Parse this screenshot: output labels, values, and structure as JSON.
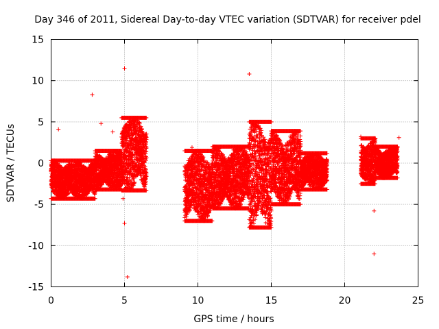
{
  "chart_data": {
    "type": "scatter",
    "title": "Day 346 of 2011, Sidereal Day-to-day VTEC variation (SDTVAR) for receiver pdel",
    "xlabel": "GPS time / hours",
    "ylabel": "SDTVAR / TECUs",
    "xlim": [
      0,
      25
    ],
    "ylim": [
      -15,
      15
    ],
    "xticks": [
      0,
      5,
      10,
      15,
      20,
      25
    ],
    "yticks": [
      -15,
      -10,
      -5,
      0,
      5,
      10,
      15
    ],
    "grid": true,
    "marker": "+",
    "color": "#ff0000",
    "segments": [
      {
        "x_start": 0.0,
        "x_end": 3.0,
        "y_low": -4.3,
        "y_high": 0.3
      },
      {
        "x_start": 3.0,
        "x_end": 4.8,
        "y_low": -3.2,
        "y_high": 1.5
      },
      {
        "x_start": 4.8,
        "x_end": 6.5,
        "y_low": -3.3,
        "y_high": 5.5
      },
      {
        "x_start": 9.1,
        "x_end": 11.0,
        "y_low": -7.0,
        "y_high": 1.5
      },
      {
        "x_start": 11.0,
        "x_end": 13.5,
        "y_low": -5.5,
        "y_high": 2.0
      },
      {
        "x_start": 13.5,
        "x_end": 15.0,
        "y_low": -7.8,
        "y_high": 5.0
      },
      {
        "x_start": 15.0,
        "x_end": 17.0,
        "y_low": -5.0,
        "y_high": 3.9
      },
      {
        "x_start": 17.0,
        "x_end": 18.8,
        "y_low": -3.2,
        "y_high": 1.2
      },
      {
        "x_start": 21.1,
        "x_end": 22.1,
        "y_low": -2.5,
        "y_high": 3.0
      },
      {
        "x_start": 22.1,
        "x_end": 23.6,
        "y_low": -1.8,
        "y_high": 2.0
      }
    ],
    "outliers": [
      {
        "x": 0.5,
        "y": 4.1
      },
      {
        "x": 2.8,
        "y": 8.3
      },
      {
        "x": 3.4,
        "y": 4.8
      },
      {
        "x": 4.2,
        "y": 3.8
      },
      {
        "x": 4.9,
        "y": -4.3
      },
      {
        "x": 5.0,
        "y": -7.3
      },
      {
        "x": 5.0,
        "y": 11.5
      },
      {
        "x": 5.2,
        "y": -13.8
      },
      {
        "x": 9.6,
        "y": 1.9
      },
      {
        "x": 13.5,
        "y": 10.8
      },
      {
        "x": 21.1,
        "y": 3.2
      },
      {
        "x": 22.0,
        "y": -5.8
      },
      {
        "x": 22.0,
        "y": -11.0
      },
      {
        "x": 23.7,
        "y": 3.1
      }
    ]
  }
}
